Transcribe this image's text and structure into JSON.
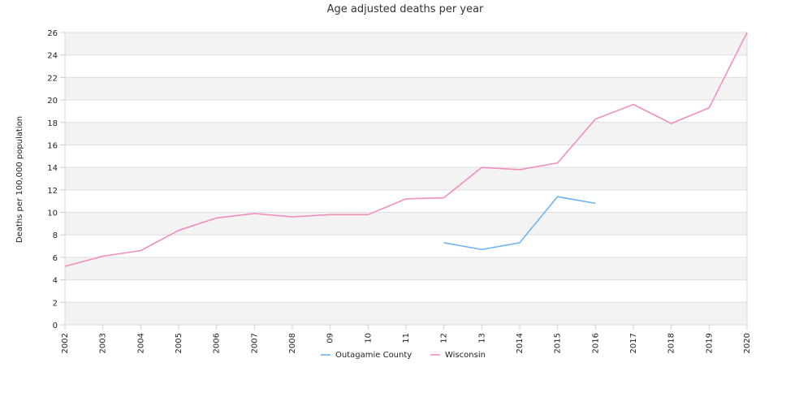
{
  "chart_data": {
    "type": "line",
    "title": "Age adjusted deaths per year",
    "xlabel": "",
    "ylabel": "Deaths per 100,000 population",
    "categories": [
      "2002",
      "2003",
      "2004",
      "2005",
      "2006",
      "2007",
      "2008",
      "09",
      "10",
      "11",
      "12",
      "13",
      "2014",
      "2015",
      "2016",
      "2017",
      "2018",
      "2019",
      "2020"
    ],
    "ylim": [
      0,
      26
    ],
    "yticks": [
      0,
      2,
      4,
      6,
      8,
      10,
      12,
      14,
      16,
      18,
      20,
      22,
      24,
      26
    ],
    "grid": "horizontal alternating bands",
    "legend_position": "bottom-center",
    "series": [
      {
        "name": "Outagamie County",
        "color": "#6eb5ef",
        "values": [
          null,
          null,
          null,
          null,
          null,
          null,
          null,
          null,
          null,
          null,
          7.3,
          6.7,
          7.3,
          11.4,
          10.8,
          null,
          null,
          null,
          null
        ]
      },
      {
        "name": "Wisconsin",
        "color": "#f08fbf",
        "values": [
          5.2,
          6.1,
          6.6,
          8.4,
          9.5,
          9.9,
          9.6,
          9.8,
          9.8,
          11.2,
          11.3,
          14.0,
          13.8,
          14.4,
          18.3,
          19.6,
          17.9,
          19.3,
          26.0
        ]
      }
    ]
  }
}
